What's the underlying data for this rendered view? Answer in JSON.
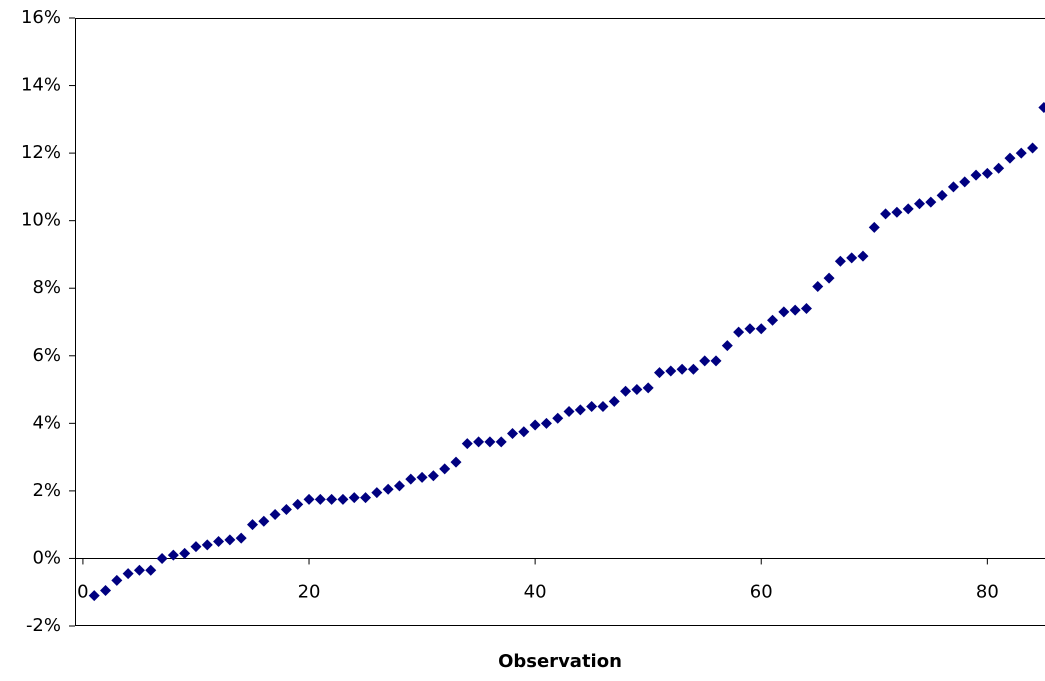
{
  "chart_data": {
    "type": "scatter",
    "x_label": "Observation",
    "color": "#000080",
    "marker": "diamond",
    "grid": false,
    "x": [
      1,
      2,
      3,
      4,
      5,
      6,
      7,
      8,
      9,
      10,
      11,
      12,
      13,
      14,
      15,
      16,
      17,
      18,
      19,
      20,
      21,
      22,
      23,
      24,
      25,
      26,
      27,
      28,
      29,
      30,
      31,
      32,
      33,
      34,
      35,
      36,
      37,
      38,
      39,
      40,
      41,
      42,
      43,
      44,
      45,
      46,
      47,
      48,
      49,
      50,
      51,
      52,
      53,
      54,
      55,
      56,
      57,
      58,
      59,
      60,
      61,
      62,
      63,
      64,
      65,
      66,
      67,
      68,
      69,
      70,
      71,
      72,
      73,
      74,
      75,
      76,
      77,
      78,
      79,
      80,
      81,
      82,
      83,
      84,
      85
    ],
    "values": [
      -1.1,
      -0.95,
      -0.65,
      -0.45,
      -0.35,
      -0.35,
      0.0,
      0.1,
      0.15,
      0.35,
      0.4,
      0.5,
      0.55,
      0.6,
      1.0,
      1.1,
      1.3,
      1.45,
      1.6,
      1.75,
      1.75,
      1.75,
      1.75,
      1.8,
      1.8,
      1.95,
      2.05,
      2.15,
      2.35,
      2.4,
      2.45,
      2.65,
      2.85,
      3.4,
      3.45,
      3.45,
      3.45,
      3.7,
      3.75,
      3.95,
      4.0,
      4.15,
      4.35,
      4.4,
      4.5,
      4.5,
      4.65,
      4.95,
      5.0,
      5.05,
      5.5,
      5.55,
      5.6,
      5.6,
      5.85,
      5.85,
      6.3,
      6.7,
      6.8,
      6.8,
      7.05,
      7.3,
      7.35,
      7.4,
      8.05,
      8.3,
      8.8,
      8.9,
      8.95,
      9.8,
      10.2,
      10.25,
      10.35,
      10.5,
      10.55,
      10.75,
      11.0,
      11.15,
      11.35,
      11.4,
      11.55,
      11.85,
      12.0,
      12.15,
      13.35
    ],
    "xlim": [
      -0.7,
      85.1
    ],
    "xticks": [
      0,
      20,
      40,
      60,
      80
    ],
    "ylim": [
      -2,
      16
    ],
    "yticks": [
      {
        "value": -2,
        "label": "-2%"
      },
      {
        "value": 0,
        "label": "0%"
      },
      {
        "value": 2,
        "label": "2%"
      },
      {
        "value": 4,
        "label": "4%"
      },
      {
        "value": 6,
        "label": "6%"
      },
      {
        "value": 8,
        "label": "8%"
      },
      {
        "value": 10,
        "label": "10%"
      },
      {
        "value": 12,
        "label": "12%"
      },
      {
        "value": 14,
        "label": "14%"
      },
      {
        "value": 16,
        "label": "16%"
      }
    ]
  }
}
